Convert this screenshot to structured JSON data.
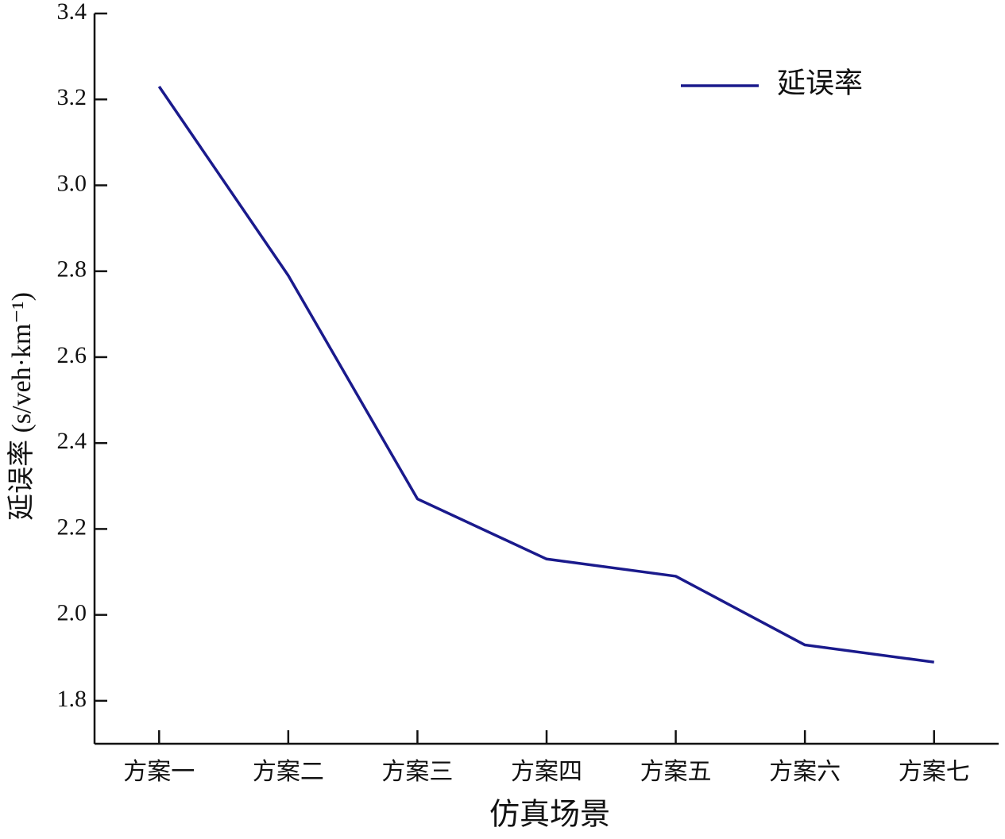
{
  "chart_data": {
    "type": "line",
    "x_label": "仿真场景",
    "y_label": "延误率 (s/veh·km⁻¹)",
    "categories": [
      "方案一",
      "方案二",
      "方案三",
      "方案四",
      "方案五",
      "方案六",
      "方案七"
    ],
    "series": [
      {
        "name": "延误率",
        "color": "#1a1a8c",
        "values": [
          3.23,
          2.79,
          2.27,
          2.13,
          2.09,
          1.93,
          1.89
        ]
      }
    ],
    "ylim": [
      1.7,
      3.4
    ],
    "yticks": [
      1.8,
      {
        "value": 2.0,
        "label": "2.0"
      },
      2.2,
      2.4,
      2.6,
      2.8,
      {
        "value": 3.0,
        "label": "3.0"
      },
      3.2,
      3.4
    ],
    "legend": "upper right"
  }
}
